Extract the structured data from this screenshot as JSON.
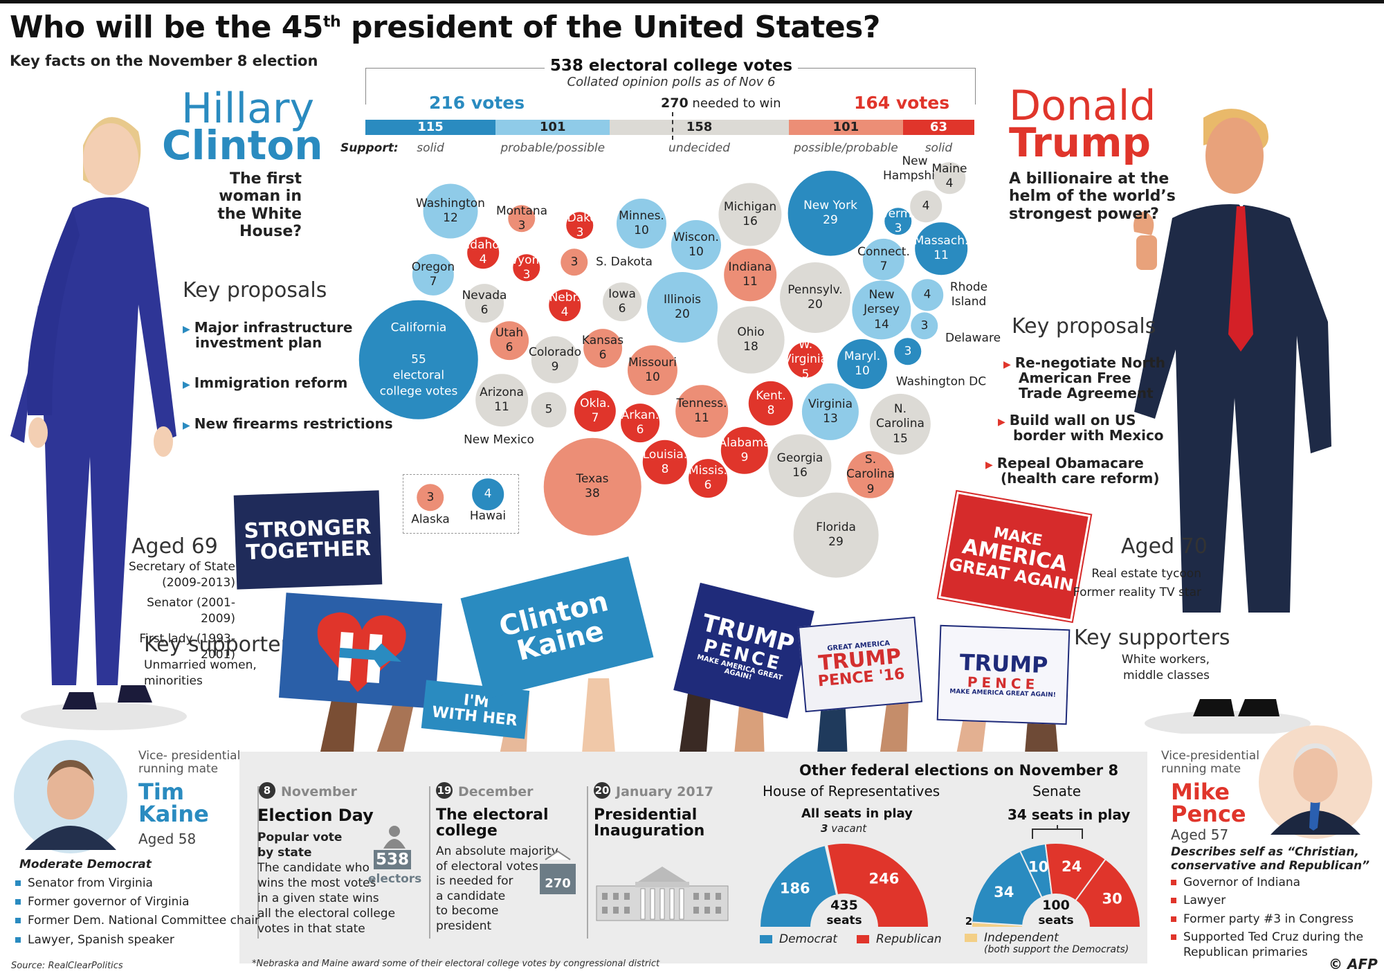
{
  "header": {
    "title_pre": "Who will be the 45",
    "title_sup": "th",
    "title_post": " president of the United States?",
    "subtitle": "Key facts on the November 8 election"
  },
  "clinton": {
    "first": "Hillary",
    "last": "Clinton",
    "tagline": [
      "The first woman in",
      "the White House?"
    ],
    "kp_title": "Key proposals",
    "proposals": [
      [
        "Major infrastructure",
        "investment plan"
      ],
      [
        "Immigration reform"
      ],
      [
        "New firearms restrictions"
      ]
    ],
    "aged": "Aged 69",
    "bio": [
      "Secretary of State",
      "(2009-2013)",
      "Senator (2001-2009)",
      "First lady (1993-2001)"
    ],
    "ks_title": "Key supporters",
    "supporters": [
      "Unmarried women,",
      "minorities"
    ]
  },
  "trump": {
    "first": "Donald",
    "last": "Trump",
    "tagline": [
      "A billionaire at the",
      "helm of the world’s",
      "strongest power?"
    ],
    "kp_title": "Key proposals",
    "proposals": [
      [
        "Re-negotiate North",
        "American Free",
        "Trade Agreement"
      ],
      [
        "Build wall on US",
        "border with Mexico"
      ],
      [
        "Repeal Obamacare",
        "(health care reform)"
      ]
    ],
    "aged": "Aged 70",
    "bio": [
      "Real estate tycoon",
      "Former reality TV star"
    ],
    "ks_title": "Key supporters",
    "supporters": [
      "White workers,",
      "middle classes"
    ]
  },
  "colors": {
    "dem_solid": "#2a8bc0",
    "dem_prob": "#8fcbe8",
    "undecided": "#dcdad5",
    "rep_prob": "#ec8e76",
    "rep_solid": "#e0352b",
    "independent": "#f3cf86"
  },
  "chart_data": [
    {
      "type": "bar",
      "title": "538 electoral college votes",
      "subtitle": "Collated opinion polls as of Nov 6",
      "threshold_label": "270 needed to win",
      "threshold_value": "270",
      "threshold_text": "needed to win",
      "left_total": "216 votes",
      "right_total": "164 votes",
      "support_label": "Support:",
      "categories": [
        "solid",
        "probable/possible",
        "undecided",
        "possible/probable",
        "solid"
      ],
      "values": [
        115,
        101,
        158,
        101,
        63
      ]
    },
    {
      "type": "scatter",
      "note": "bubble chart of states",
      "states": [
        {
          "name": "Washington",
          "ev": 12,
          "lean": "dem_prob"
        },
        {
          "name": "Montana",
          "ev": 3,
          "lean": "rep_prob"
        },
        {
          "name": "N. Dakota",
          "ev": 3,
          "lean": "rep_solid"
        },
        {
          "name": "Minnes.",
          "ev": 10,
          "lean": "dem_prob"
        },
        {
          "name": "Michigan",
          "ev": 16,
          "lean": "undecided"
        },
        {
          "name": "New York",
          "ev": 29,
          "lean": "dem_solid"
        },
        {
          "name": "New Hampshire",
          "ev": 4,
          "lean": "undecided"
        },
        {
          "name": "Maine",
          "ev": 4,
          "lean": "undecided"
        },
        {
          "name": "Verm.",
          "ev": 3,
          "lean": "dem_solid"
        },
        {
          "name": "Idaho",
          "ev": 4,
          "lean": "rep_solid"
        },
        {
          "name": "Wyom.",
          "ev": 3,
          "lean": "rep_solid"
        },
        {
          "name": "S. Dakota",
          "ev": 3,
          "lean": "rep_prob"
        },
        {
          "name": "Wiscon.",
          "ev": 10,
          "lean": "dem_prob"
        },
        {
          "name": "Massach.",
          "ev": 11,
          "lean": "dem_solid"
        },
        {
          "name": "Connect.",
          "ev": 7,
          "lean": "dem_prob"
        },
        {
          "name": "Oregon",
          "ev": 7,
          "lean": "dem_prob"
        },
        {
          "name": "Nevada",
          "ev": 6,
          "lean": "undecided"
        },
        {
          "name": "Nebr.",
          "ev": 4,
          "lean": "rep_solid"
        },
        {
          "name": "Iowa",
          "ev": 6,
          "lean": "undecided"
        },
        {
          "name": "Illinois",
          "ev": 20,
          "lean": "dem_prob"
        },
        {
          "name": "Indiana",
          "ev": 11,
          "lean": "rep_prob"
        },
        {
          "name": "Pennsylv.",
          "ev": 20,
          "lean": "undecided"
        },
        {
          "name": "New Jersey",
          "ev": 14,
          "lean": "dem_prob"
        },
        {
          "name": "Rhode Island",
          "ev": 4,
          "lean": "dem_prob"
        },
        {
          "name": "California",
          "ev": 55,
          "lean": "dem_solid"
        },
        {
          "name": "Utah",
          "ev": 6,
          "lean": "rep_prob"
        },
        {
          "name": "Kansas",
          "ev": 6,
          "lean": "rep_prob"
        },
        {
          "name": "Colorado",
          "ev": 9,
          "lean": "undecided"
        },
        {
          "name": "Missouri",
          "ev": 10,
          "lean": "rep_prob"
        },
        {
          "name": "Ohio",
          "ev": 18,
          "lean": "undecided"
        },
        {
          "name": "W. Virginia",
          "ev": 5,
          "lean": "rep_solid"
        },
        {
          "name": "Maryl.",
          "ev": 10,
          "lean": "dem_solid"
        },
        {
          "name": "Delaware",
          "ev": 3,
          "lean": "dem_prob"
        },
        {
          "name": "Washington DC",
          "ev": 3,
          "lean": "dem_solid"
        },
        {
          "name": "Arizona",
          "ev": 11,
          "lean": "undecided"
        },
        {
          "name": "New Mexico",
          "ev": 5,
          "lean": "undecided"
        },
        {
          "name": "Okla.",
          "ev": 7,
          "lean": "rep_solid"
        },
        {
          "name": "Arkan.",
          "ev": 6,
          "lean": "rep_solid"
        },
        {
          "name": "Tenness.",
          "ev": 11,
          "lean": "rep_prob"
        },
        {
          "name": "Kent.",
          "ev": 8,
          "lean": "rep_solid"
        },
        {
          "name": "Virginia",
          "ev": 13,
          "lean": "dem_prob"
        },
        {
          "name": "N. Carolina",
          "ev": 15,
          "lean": "undecided"
        },
        {
          "name": "Texas",
          "ev": 38,
          "lean": "rep_prob"
        },
        {
          "name": "Louisia.",
          "ev": 8,
          "lean": "rep_solid"
        },
        {
          "name": "Missis.",
          "ev": 6,
          "lean": "rep_solid"
        },
        {
          "name": "Alabama",
          "ev": 9,
          "lean": "rep_solid"
        },
        {
          "name": "Georgia",
          "ev": 16,
          "lean": "undecided"
        },
        {
          "name": "S. Carolina",
          "ev": 9,
          "lean": "rep_prob"
        },
        {
          "name": "Florida",
          "ev": 29,
          "lean": "undecided"
        },
        {
          "name": "Alaska",
          "ev": 3,
          "lean": "rep_prob"
        },
        {
          "name": "Hawai",
          "ev": 4,
          "lean": "dem_solid"
        }
      ],
      "california_extra": [
        "electoral",
        "college votes"
      ]
    },
    {
      "type": "pie",
      "title": "House of Representatives",
      "seats_title": "All seats in play",
      "vacant": "3 vacant",
      "vacant_num": "3",
      "vacant_word": "vacant",
      "total": "435",
      "total_label": "seats",
      "series": [
        {
          "name": "Democrat",
          "value": 186
        },
        {
          "name": "Republican",
          "value": 246
        },
        {
          "name": "vacant",
          "value": 3
        }
      ]
    },
    {
      "type": "pie",
      "title": "Senate",
      "seats_title": "34 seats in play",
      "total": "100",
      "total_label": "seats",
      "series": [
        {
          "name": "Independent",
          "value": 2
        },
        {
          "name": "Democrat",
          "value": 34
        },
        {
          "name": "Democrat",
          "value": 10
        },
        {
          "name": "Republican",
          "value": 24
        },
        {
          "name": "Republican",
          "value": 30
        }
      ]
    }
  ],
  "signs": {
    "stronger": [
      "STRONGER",
      "TOGETHER"
    ],
    "clinton_kaine": [
      "Clinton",
      "Kaine"
    ],
    "with_her": [
      "I'M",
      "WITH HER"
    ],
    "trump_pence_1": [
      "TRUMP",
      "PENCE",
      "MAKE AMERICA GREAT AGAIN!"
    ],
    "trump_pence_16": [
      "GREAT AMERICA",
      "TRUMP",
      "PENCE '16"
    ],
    "trump_pence_2": [
      "TRUMP",
      "PENCE",
      "MAKE AMERICA GREAT AGAIN!"
    ],
    "maga": [
      "MAKE",
      "AMERICA",
      "GREAT AGAIN"
    ]
  },
  "timeline": [
    {
      "num": "8",
      "date": "November",
      "title": [
        "Election Day"
      ],
      "sub": [
        "Popular vote",
        "by state"
      ],
      "text": [
        "The candidate who",
        "wins the most votes",
        "in a given state wins",
        "all the electoral college",
        "votes in that state"
      ],
      "figure": "538",
      "figure_label": "electors"
    },
    {
      "num": "19",
      "date": "December",
      "title": [
        "The electoral",
        "college"
      ],
      "text": [
        "An absolute majority",
        "of electoral votes",
        "is needed for",
        "a candidate",
        "to become",
        "president"
      ],
      "figure": "270"
    },
    {
      "num": "20",
      "date": "January 2017",
      "title": [
        "Presidential",
        "Inauguration"
      ]
    }
  ],
  "federal": {
    "title": "Other federal elections on November 8",
    "house_label": "House of Representatives",
    "senate_label": "Senate",
    "house_seats_title": "All seats in play",
    "senate_seats_title": "34 seats in play",
    "legend": {
      "dem": "Democrat",
      "rep": "Republican",
      "ind": "Independent",
      "ind_note": "(both support the Democrats)"
    }
  },
  "kaine": {
    "label": [
      "Vice- presidential",
      "running mate"
    ],
    "first": "Tim",
    "last": "Kaine",
    "aged": "Aged 58",
    "desc": [
      "Moderate Democrat"
    ],
    "list": [
      "Senator from Virginia",
      "Former governor of Virginia",
      "Former Dem. National Committee chair",
      "Lawyer, Spanish speaker"
    ]
  },
  "pence": {
    "label": [
      "Vice-presidential",
      "running mate"
    ],
    "first": "Mike",
    "last": "Pence",
    "aged": "Aged 57",
    "desc": [
      "Describes self as “Christian,",
      "conservative and Republican”"
    ],
    "list": [
      "Governor of Indiana",
      "Lawyer",
      "Former party #3 in Congress",
      "Supported Ted Cruz during the",
      "Republican primaries"
    ]
  },
  "footer": {
    "source": "Source: RealClearPolitics",
    "footnote": "*Nebraska and Maine award some of their electoral college votes by congressional district",
    "logo": "© AFP"
  }
}
